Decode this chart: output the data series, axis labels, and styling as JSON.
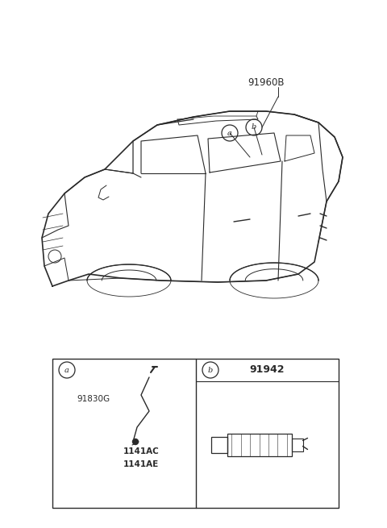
{
  "bg_color": "#ffffff",
  "line_color": "#2a2a2a",
  "car_label": "91960B",
  "label_a": "a",
  "label_b": "b",
  "part_a_code": "91830G",
  "part_a_sub1": "1141AC",
  "part_a_sub2": "1141AE",
  "part_b_code": "91942",
  "fig_width": 4.8,
  "fig_height": 6.55,
  "dpi": 100
}
